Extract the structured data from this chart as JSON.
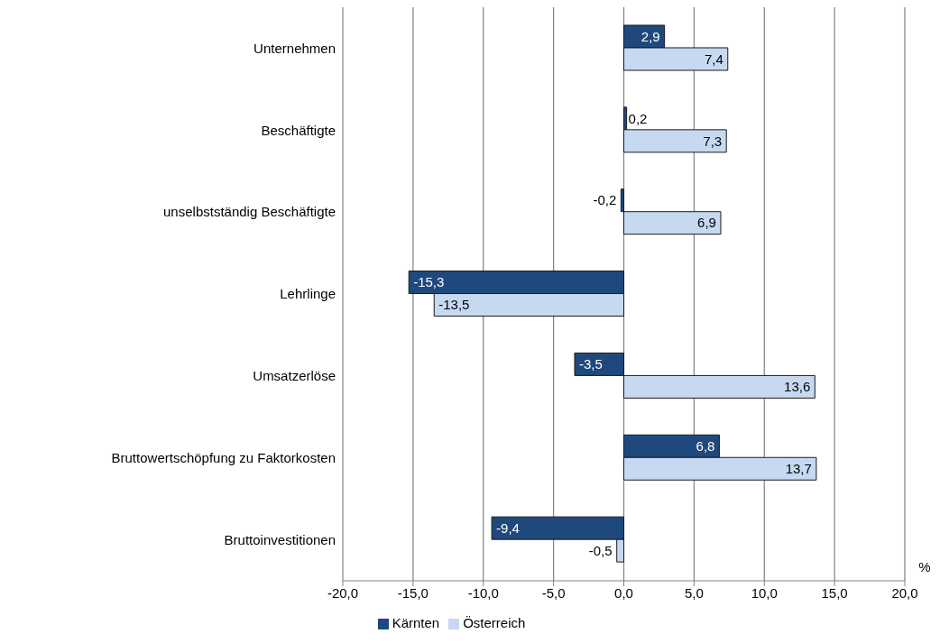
{
  "chart_data": {
    "type": "bar",
    "orientation": "horizontal",
    "xlabel": "%",
    "categories": [
      "Unternehmen",
      "Beschäftigte",
      "unselbstständig Beschäftigte",
      "Lehrlinge",
      "Umsatzerlöse",
      "Bruttowertschöpfung zu Faktorkosten",
      "Bruttoinvestitionen"
    ],
    "series": [
      {
        "name": "Kärnten",
        "color": "#1f497d",
        "values": [
          2.9,
          0.2,
          -0.2,
          -15.3,
          -3.5,
          6.8,
          -9.4
        ],
        "value_labels": [
          "2,9",
          "0,2",
          "-0,2",
          "-15,3",
          "-3,5",
          "6,8",
          "-9,4"
        ]
      },
      {
        "name": "Österreich",
        "color": "#c6d9f1",
        "values": [
          7.4,
          7.3,
          6.9,
          -13.5,
          13.6,
          13.7,
          -0.5
        ],
        "value_labels": [
          "7,4",
          "7,3",
          "6,9",
          "-13,5",
          "13,6",
          "13,7",
          "-0,5"
        ]
      }
    ],
    "xlim": [
      -20,
      20
    ],
    "xticks": [
      {
        "value": -20,
        "label": "-20,0"
      },
      {
        "value": -15,
        "label": "-15,0"
      },
      {
        "value": -10,
        "label": "-10,0"
      },
      {
        "value": -5,
        "label": "-5,0"
      },
      {
        "value": 0,
        "label": "0,0"
      },
      {
        "value": 5,
        "label": "5,0"
      },
      {
        "value": 10,
        "label": "10,0"
      },
      {
        "value": 15,
        "label": "15,0"
      },
      {
        "value": 20,
        "label": "20,0"
      }
    ],
    "grid": "x",
    "legend": "bottom"
  }
}
